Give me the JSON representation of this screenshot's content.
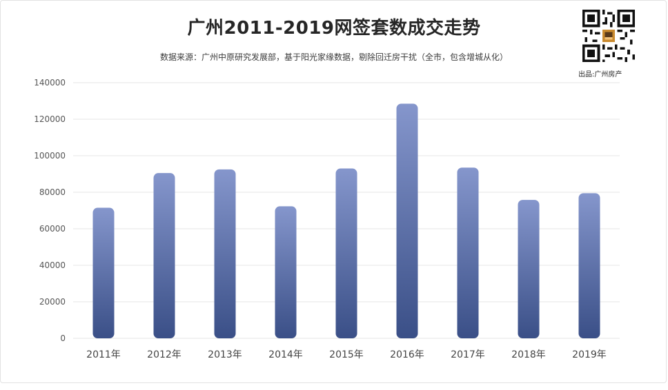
{
  "header": {
    "title": "广州2011-2019网签套数成交走势",
    "subtitle": "数据来源：广州中原研究发展部，基于阳光家缘数据，剔除回迁房干扰（全市，包含增城从化）",
    "credit": "出品:广州房产"
  },
  "colors": {
    "bar_top": "#8596cc",
    "bar_bottom": "#3a4f87",
    "grid": "#e6e6e6",
    "axis_text": "#555555"
  },
  "chart_data": {
    "type": "bar",
    "title": "广州2011-2019网签套数成交走势",
    "subtitle": "数据来源：广州中原研究发展部，基于阳光家缘数据，剔除回迁房干扰（全市，包含增城从化）",
    "categories": [
      "2011年",
      "2012年",
      "2013年",
      "2014年",
      "2015年",
      "2016年",
      "2017年",
      "2018年",
      "2019年"
    ],
    "values": [
      71500,
      90500,
      92500,
      72300,
      93000,
      128500,
      93500,
      75800,
      79500
    ],
    "ylim": [
      0,
      140000
    ],
    "yticks": [
      0,
      20000,
      40000,
      60000,
      80000,
      100000,
      120000,
      140000
    ],
    "grid": true,
    "legend": "none"
  }
}
